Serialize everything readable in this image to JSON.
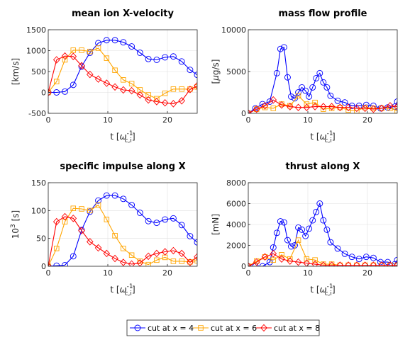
{
  "legend": [
    {
      "label": "cut at x = 4",
      "color": "#0000ff",
      "marker": "circle"
    },
    {
      "label": "cut at x = 6",
      "color": "#ffa500",
      "marker": "square"
    },
    {
      "label": "cut at x = 8",
      "color": "#ff0000",
      "marker": "diamond"
    }
  ],
  "chart_data": [
    {
      "type": "line",
      "title": "mean ion X-velocity",
      "xlabel": "t [ω_c,i^-1]",
      "ylabel": "[km/s]",
      "xlim": [
        0,
        25
      ],
      "ylim": [
        -500,
        1500
      ],
      "xticks": [
        0,
        10,
        20
      ],
      "yticks": [
        -500,
        0,
        500,
        1000,
        1500
      ],
      "grid": true,
      "series": [
        {
          "name": "cut at x = 4",
          "x": [
            0,
            1.4,
            2.8,
            4.2,
            5.6,
            7,
            8.4,
            9.8,
            11.2,
            12.6,
            14,
            15.4,
            16.8,
            18.2,
            19.6,
            21,
            22.4,
            23.8,
            25
          ],
          "values": [
            0,
            0,
            20,
            180,
            620,
            950,
            1180,
            1250,
            1250,
            1200,
            1100,
            950,
            800,
            780,
            840,
            860,
            740,
            540,
            420
          ]
        },
        {
          "name": "cut at x = 6",
          "x": [
            0,
            1.4,
            2.8,
            4.2,
            5.6,
            7,
            8.4,
            9.8,
            11.2,
            12.6,
            14,
            15.4,
            16.8,
            18.2,
            19.6,
            21,
            22.4,
            23.8,
            25
          ],
          "values": [
            0,
            260,
            780,
            1010,
            1010,
            980,
            1060,
            820,
            530,
            300,
            210,
            60,
            -60,
            -150,
            -20,
            80,
            80,
            80,
            130
          ]
        },
        {
          "name": "cut at x = 8",
          "x": [
            0,
            1.4,
            2.8,
            4.2,
            5.6,
            7,
            8.4,
            9.8,
            11.2,
            12.6,
            14,
            15.4,
            16.8,
            18.2,
            19.6,
            21,
            22.4,
            23.8,
            25
          ],
          "values": [
            0,
            780,
            870,
            860,
            640,
            430,
            320,
            220,
            130,
            60,
            40,
            -60,
            -180,
            -220,
            -250,
            -270,
            -200,
            70,
            160
          ]
        }
      ]
    },
    {
      "type": "line",
      "title": "mass flow profile",
      "xlabel": "t [ω_c,i^-1]",
      "ylabel": "[μg/s]",
      "xlim": [
        0,
        25
      ],
      "ylim": [
        0,
        10000
      ],
      "xticks": [
        0,
        10,
        20
      ],
      "yticks": [
        0,
        5000,
        10000
      ],
      "grid": true,
      "series": [
        {
          "name": "cut at x = 4",
          "x": [
            0,
            1.2,
            2.4,
            3.6,
            4.8,
            5.4,
            6,
            6.6,
            7.2,
            7.8,
            8.4,
            9,
            9.6,
            10.2,
            10.8,
            11.4,
            12,
            12.6,
            13.2,
            13.8,
            15,
            16.2,
            17.4,
            18.6,
            19.8,
            21,
            22.2,
            23.4,
            24.6,
            25
          ],
          "values": [
            0,
            600,
            1100,
            1400,
            4800,
            7700,
            7900,
            4300,
            2000,
            1800,
            2500,
            3100,
            2700,
            2000,
            3100,
            4200,
            4800,
            3700,
            3100,
            2100,
            1500,
            1300,
            900,
            900,
            1000,
            900,
            600,
            700,
            800,
            1400
          ]
        },
        {
          "name": "cut at x = 6",
          "x": [
            0,
            1.4,
            2.8,
            4.2,
            5.6,
            7,
            8.4,
            9.8,
            11.2,
            12.6,
            14,
            15.4,
            16.8,
            18.2,
            19.6,
            21,
            22.4,
            23.8,
            25
          ],
          "values": [
            0,
            500,
            700,
            600,
            1100,
            900,
            2100,
            1100,
            1300,
            500,
            600,
            700,
            400,
            300,
            700,
            600,
            600,
            600,
            300
          ]
        },
        {
          "name": "cut at x = 8",
          "x": [
            0,
            1.4,
            2.8,
            4.2,
            5.6,
            7,
            8.4,
            9.8,
            11.2,
            12.6,
            14,
            15.4,
            16.8,
            18.2,
            19.6,
            21,
            22.4,
            23.8,
            25
          ],
          "values": [
            0,
            500,
            900,
            1600,
            1000,
            800,
            700,
            700,
            800,
            800,
            800,
            700,
            700,
            600,
            600,
            500,
            600,
            900,
            800
          ]
        }
      ]
    },
    {
      "type": "line",
      "title": "specific impulse along X",
      "xlabel": "t [ω_c,i^-1]",
      "ylabel": "10^3 [s]",
      "xlim": [
        0,
        25
      ],
      "ylim": [
        0,
        150
      ],
      "xticks": [
        0,
        10,
        20
      ],
      "yticks": [
        0,
        50,
        100,
        150
      ],
      "grid": true,
      "series": [
        {
          "name": "cut at x = 4",
          "x": [
            0,
            1.4,
            2.8,
            4.2,
            5.6,
            7,
            8.4,
            9.8,
            11.2,
            12.6,
            14,
            15.4,
            16.8,
            18.2,
            19.6,
            21,
            22.4,
            23.8,
            25
          ],
          "values": [
            0,
            1,
            2,
            18,
            65,
            98,
            118,
            127,
            127,
            121,
            110,
            96,
            81,
            78,
            84,
            86,
            74,
            54,
            43
          ]
        },
        {
          "name": "cut at x = 6",
          "x": [
            0,
            1.4,
            2.8,
            4.2,
            5.6,
            7,
            8.4,
            9.8,
            11.2,
            12.6,
            14,
            15.4,
            16.8,
            18.2,
            19.6,
            21,
            22.4,
            23.8,
            25
          ],
          "values": [
            0,
            32,
            80,
            104,
            103,
            100,
            110,
            84,
            55,
            32,
            20,
            9,
            3,
            11,
            16,
            9,
            9,
            8,
            10
          ]
        },
        {
          "name": "cut at x = 8",
          "x": [
            0,
            1.4,
            2.8,
            4.2,
            5.6,
            7,
            8.4,
            9.8,
            11.2,
            12.6,
            14,
            15.4,
            16.8,
            18.2,
            19.6,
            21,
            22.4,
            23.8,
            25
          ],
          "values": [
            0,
            80,
            89,
            86,
            64,
            44,
            33,
            23,
            14,
            7,
            4,
            6,
            18,
            23,
            26,
            28,
            23,
            7,
            17
          ]
        }
      ]
    },
    {
      "type": "line",
      "title": "thrust along X",
      "xlabel": "t [ω_c,i^-1]",
      "ylabel": "[mN]",
      "xlim": [
        0,
        25
      ],
      "ylim": [
        0,
        8000
      ],
      "xticks": [
        0,
        10,
        20
      ],
      "yticks": [
        0,
        2000,
        4000,
        6000,
        8000
      ],
      "grid": true,
      "series": [
        {
          "name": "cut at x = 4",
          "x": [
            0,
            1.2,
            2.4,
            3.6,
            4.2,
            4.8,
            5.4,
            6,
            6.6,
            7.2,
            7.8,
            8.4,
            9,
            9.6,
            10.2,
            10.8,
            11.4,
            12,
            12.6,
            13.2,
            13.8,
            15,
            16.2,
            17.4,
            18.6,
            19.8,
            21,
            22.2,
            23.4,
            24.6,
            25
          ],
          "values": [
            0,
            0,
            0,
            400,
            1800,
            3200,
            4300,
            4200,
            2500,
            1900,
            2000,
            3700,
            3500,
            2900,
            3600,
            4400,
            5200,
            6000,
            4400,
            3500,
            2300,
            1700,
            1200,
            900,
            700,
            900,
            800,
            400,
            400,
            200,
            600
          ]
        },
        {
          "name": "cut at x = 6",
          "x": [
            0,
            1.4,
            2.8,
            4.2,
            5.6,
            7,
            8.4,
            9.8,
            11.2,
            12.6,
            14,
            15.4,
            16.8,
            18.2,
            19.6,
            21,
            22.4,
            23.8,
            25
          ],
          "values": [
            0,
            500,
            900,
            600,
            1100,
            700,
            2500,
            700,
            600,
            200,
            200,
            100,
            100,
            100,
            100,
            100,
            100,
            100,
            100
          ]
        },
        {
          "name": "cut at x = 8",
          "x": [
            0,
            1.4,
            2.8,
            4.2,
            5.6,
            7,
            8.4,
            9.8,
            11.2,
            12.6,
            14,
            15.4,
            16.8,
            18.2,
            19.6,
            21,
            22.4,
            23.8,
            25
          ],
          "values": [
            0,
            400,
            900,
            1200,
            700,
            500,
            400,
            300,
            200,
            100,
            100,
            100,
            100,
            100,
            100,
            100,
            100,
            100,
            100
          ]
        }
      ]
    }
  ]
}
